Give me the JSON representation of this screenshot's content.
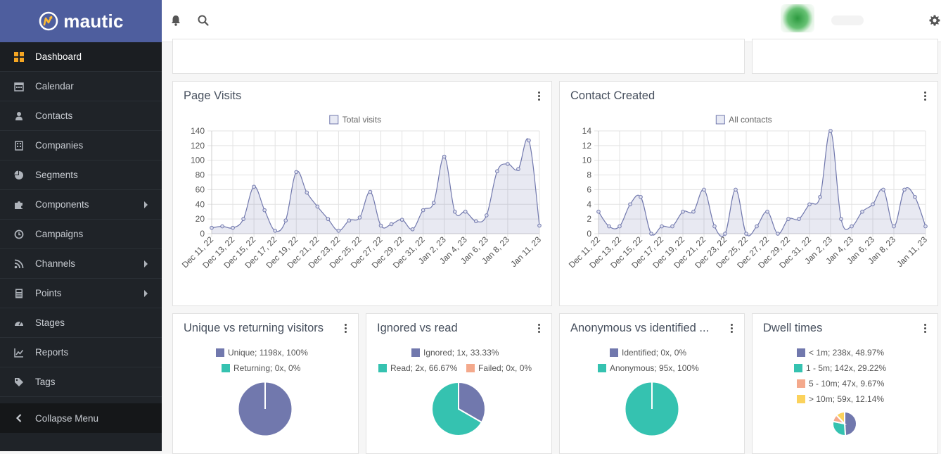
{
  "brand": {
    "name": "mautic",
    "color": "#4e5e9e",
    "accent": "#fdb933"
  },
  "sidebar": {
    "items": [
      {
        "label": "Dashboard",
        "icon": "dashboard-grid-icon",
        "active": true
      },
      {
        "label": "Calendar",
        "icon": "calendar-icon"
      },
      {
        "label": "Contacts",
        "icon": "user-icon"
      },
      {
        "label": "Companies",
        "icon": "building-icon"
      },
      {
        "label": "Segments",
        "icon": "pie-chart-icon"
      },
      {
        "label": "Components",
        "icon": "puzzle-icon",
        "submenu": true
      },
      {
        "label": "Campaigns",
        "icon": "clock-icon"
      },
      {
        "label": "Channels",
        "icon": "rss-icon",
        "submenu": true
      },
      {
        "label": "Points",
        "icon": "calculator-icon",
        "submenu": true
      },
      {
        "label": "Stages",
        "icon": "tachometer-icon"
      },
      {
        "label": "Reports",
        "icon": "line-chart-icon"
      },
      {
        "label": "Tags",
        "icon": "tag-icon"
      }
    ],
    "collapse_label": "Collapse Menu"
  },
  "topbar": {
    "icons": [
      "bell-icon",
      "search-icon",
      "gear-icon"
    ]
  },
  "widgets": {
    "page_visits": {
      "title": "Page Visits",
      "chart_data": {
        "type": "area",
        "x": [
          "Dec 11, 22",
          "Dec 12, 22",
          "Dec 13, 22",
          "Dec 14, 22",
          "Dec 15, 22",
          "Dec 16, 22",
          "Dec 17, 22",
          "Dec 18, 22",
          "Dec 19, 22",
          "Dec 20, 22",
          "Dec 21, 22",
          "Dec 22, 22",
          "Dec 23, 22",
          "Dec 24, 22",
          "Dec 25, 22",
          "Dec 26, 22",
          "Dec 27, 22",
          "Dec 28, 22",
          "Dec 29, 22",
          "Dec 30, 22",
          "Dec 31, 22",
          "Jan 1, 23",
          "Jan 2, 23",
          "Jan 3, 23",
          "Jan 4, 23",
          "Jan 5, 23",
          "Jan 6, 23",
          "Jan 7, 23",
          "Jan 8, 23",
          "Jan 9, 23",
          "Jan 10, 23",
          "Jan 11, 23"
        ],
        "x_tick_labels": [
          "Dec 11, 22",
          "Dec 13, 22",
          "Dec 15, 22",
          "Dec 17, 22",
          "Dec 19, 22",
          "Dec 21, 22",
          "Dec 23, 22",
          "Dec 25, 22",
          "Dec 27, 22",
          "Dec 29, 22",
          "Dec 31, 22",
          "Jan 2, 23",
          "Jan 4, 23",
          "Jan 6, 23",
          "Jan 8, 23",
          "Jan 11, 23"
        ],
        "series": [
          {
            "name": "Total visits",
            "values": [
              8,
              10,
              8,
              20,
              64,
              32,
              4,
              18,
              84,
              56,
              37,
              20,
              4,
              18,
              22,
              57,
              11,
              13,
              19,
              6,
              32,
              42,
              105,
              30,
              30,
              17,
              25,
              85,
              95,
              88,
              127,
              11
            ]
          }
        ],
        "ylim": [
          0,
          140
        ],
        "yticks": [
          0,
          20,
          40,
          60,
          80,
          100,
          120,
          140
        ],
        "grid": true,
        "legend": "top-center"
      }
    },
    "contact_created": {
      "title": "Contact Created",
      "chart_data": {
        "type": "area",
        "x": [
          "Dec 11, 22",
          "Dec 12, 22",
          "Dec 13, 22",
          "Dec 14, 22",
          "Dec 15, 22",
          "Dec 16, 22",
          "Dec 17, 22",
          "Dec 18, 22",
          "Dec 19, 22",
          "Dec 20, 22",
          "Dec 21, 22",
          "Dec 22, 22",
          "Dec 23, 22",
          "Dec 24, 22",
          "Dec 25, 22",
          "Dec 26, 22",
          "Dec 27, 22",
          "Dec 28, 22",
          "Dec 29, 22",
          "Dec 30, 22",
          "Dec 31, 22",
          "Jan 1, 23",
          "Jan 2, 23",
          "Jan 3, 23",
          "Jan 4, 23",
          "Jan 5, 23",
          "Jan 6, 23",
          "Jan 7, 23",
          "Jan 8, 23",
          "Jan 9, 23",
          "Jan 10, 23",
          "Jan 11, 23"
        ],
        "x_tick_labels": [
          "Dec 11, 22",
          "Dec 13, 22",
          "Dec 15, 22",
          "Dec 17, 22",
          "Dec 19, 22",
          "Dec 21, 22",
          "Dec 23, 22",
          "Dec 25, 22",
          "Dec 27, 22",
          "Dec 29, 22",
          "Dec 31, 22",
          "Jan 2, 23",
          "Jan 4, 23",
          "Jan 6, 23",
          "Jan 8, 23",
          "Jan 11, 23"
        ],
        "series": [
          {
            "name": "All contacts",
            "values": [
              3,
              1,
              1,
              4,
              5,
              0,
              1,
              1,
              3,
              3,
              6,
              1,
              0,
              6,
              0,
              1,
              3,
              0,
              2,
              2,
              4,
              5,
              14,
              2,
              1,
              3,
              4,
              6,
              1,
              6,
              5,
              1
            ]
          }
        ],
        "ylim": [
          0,
          14
        ],
        "yticks": [
          0,
          2,
          4,
          6,
          8,
          10,
          12,
          14
        ],
        "grid": true,
        "legend": "top-center"
      }
    },
    "unique_vs_returning": {
      "title": "Unique vs returning visitors",
      "chart_data": {
        "type": "pie",
        "labels": [
          "Unique; 1198x, 100%",
          "Returning; 0x, 0%"
        ],
        "values": [
          1198,
          0
        ],
        "colors": [
          "#7178ad",
          "#35c2b0"
        ]
      }
    },
    "ignored_vs_read": {
      "title": "Ignored vs read",
      "chart_data": {
        "type": "pie",
        "labels": [
          "Ignored; 1x, 33.33%",
          "Read; 2x, 66.67%",
          "Failed; 0x, 0%"
        ],
        "values": [
          1,
          2,
          0
        ],
        "colors": [
          "#7178ad",
          "#35c2b0",
          "#f4a98c"
        ]
      }
    },
    "anonymous_vs_identified": {
      "title": "Anonymous vs identified ...",
      "chart_data": {
        "type": "pie",
        "labels": [
          "Identified; 0x, 0%",
          "Anonymous; 95x, 100%"
        ],
        "values": [
          0,
          95
        ],
        "colors": [
          "#7178ad",
          "#35c2b0"
        ]
      }
    },
    "dwell_times": {
      "title": "Dwell times",
      "chart_data": {
        "type": "pie",
        "labels": [
          "< 1m; 238x, 48.97%",
          "1 - 5m; 142x, 29.22%",
          "5 - 10m; 47x, 9.67%",
          "> 10m; 59x, 12.14%"
        ],
        "values": [
          238,
          142,
          47,
          59
        ],
        "colors": [
          "#7178ad",
          "#35c2b0",
          "#f4a98c",
          "#fbd25c"
        ]
      }
    }
  }
}
